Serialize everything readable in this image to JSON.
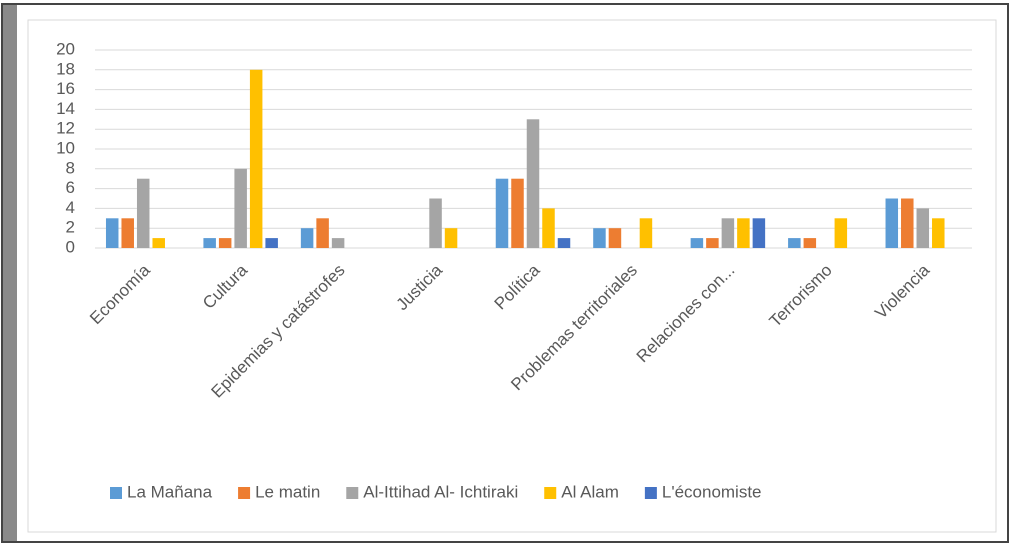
{
  "chart_data": {
    "type": "bar",
    "categories": [
      "Economía",
      "Cultura",
      "Epidemias y catástrofes",
      "Justicia",
      "Política",
      "Problemas territoriales",
      "Relaciones con...",
      "Terrorismo",
      "Violencia"
    ],
    "series": [
      {
        "name": "La Mañana",
        "color": "#5b9bd5",
        "values": [
          3,
          1,
          2,
          0,
          7,
          2,
          1,
          1,
          5
        ]
      },
      {
        "name": "Le matin",
        "color": "#ed7d31",
        "values": [
          3,
          1,
          3,
          0,
          7,
          2,
          1,
          1,
          5
        ]
      },
      {
        "name": "Al-Ittihad Al- Ichtiraki",
        "color": "#a5a5a5",
        "values": [
          7,
          8,
          1,
          5,
          13,
          0,
          3,
          0,
          4
        ]
      },
      {
        "name": "Al Alam",
        "color": "#ffc000",
        "values": [
          1,
          18,
          0,
          2,
          4,
          3,
          3,
          3,
          3
        ]
      },
      {
        "name": "L'économiste",
        "color": "#4472c4",
        "values": [
          0,
          1,
          0,
          0,
          1,
          0,
          3,
          0,
          0
        ]
      }
    ],
    "ylim": [
      0,
      20
    ],
    "yticks": [
      0,
      2,
      4,
      6,
      8,
      10,
      12,
      14,
      16,
      18,
      20
    ],
    "grid": true,
    "legend": "bottom"
  }
}
